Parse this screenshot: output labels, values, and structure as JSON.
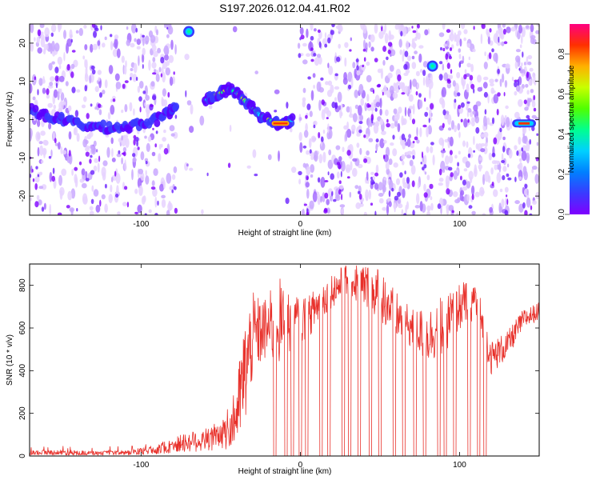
{
  "title": "S197.2026.012.04.41.R02",
  "colors": {
    "axis": "#000000",
    "snr_line": "#e8302a",
    "wash": "#efe2ff",
    "colormap": [
      "#8000ff",
      "#3a3aff",
      "#0080ff",
      "#00d0ff",
      "#00ff90",
      "#50ff00",
      "#c8ff00",
      "#ffb000",
      "#ff3000",
      "#ff0080"
    ]
  },
  "chart_data": [
    {
      "type": "heatmap",
      "name": "spectrogram",
      "xlabel": "Height of straight line (km)",
      "ylabel": "Frequency (Hz)",
      "xlim": [
        -170,
        150
      ],
      "ylim": [
        -25,
        25
      ],
      "xticks": [
        -100,
        0,
        100
      ],
      "yticks": [
        -20,
        -10,
        0,
        10,
        20
      ],
      "colorbar": {
        "label": "Normalized spectral amplitude",
        "range": [
          0,
          0.95
        ],
        "ticks": [
          "0.0",
          "0.2",
          "0.4",
          "0.6",
          "0.8"
        ]
      },
      "features": [
        {
          "name": "low-altitude band",
          "x": [
            -170,
            -160,
            -150,
            -140,
            -130,
            -120,
            -110,
            -100,
            -90,
            -82,
            -78
          ],
          "y": [
            3,
            1,
            0,
            -1,
            -2,
            -2,
            -2,
            -1,
            0,
            2,
            4
          ]
        },
        {
          "name": "arc",
          "x": [
            -60,
            -55,
            -50,
            -45,
            -40,
            -35,
            -30,
            -25,
            -20,
            -15,
            -10,
            -5
          ],
          "y": [
            5,
            6,
            7,
            8,
            7,
            5,
            3,
            1,
            0,
            -1,
            -1,
            0
          ]
        },
        {
          "name": "spot 1",
          "x": [
            -70
          ],
          "y": [
            23
          ]
        },
        {
          "name": "spot 2",
          "x": [
            83
          ],
          "y": [
            14
          ]
        },
        {
          "name": "right segment",
          "x": [
            133,
            148
          ],
          "y": [
            -1,
            -1
          ]
        }
      ]
    },
    {
      "type": "line",
      "name": "snr",
      "xlabel": "Height of straight line (km)",
      "ylabel": "SNR (10 * v/v)",
      "xlim": [
        -170,
        150
      ],
      "ylim": [
        0,
        900
      ],
      "xticks": [
        -100,
        0,
        100
      ],
      "yticks": [
        0,
        200,
        400,
        600,
        800
      ],
      "x": [
        -170,
        -150,
        -130,
        -110,
        -100,
        -90,
        -80,
        -70,
        -60,
        -50,
        -45,
        -40,
        -35,
        -30,
        -25,
        -20,
        -15,
        -10,
        -5,
        0,
        5,
        10,
        20,
        30,
        40,
        50,
        60,
        70,
        80,
        90,
        100,
        110,
        120,
        130,
        140,
        150
      ],
      "y_mean": [
        15,
        15,
        12,
        14,
        20,
        30,
        45,
        60,
        70,
        80,
        110,
        200,
        380,
        560,
        580,
        600,
        640,
        620,
        620,
        640,
        650,
        700,
        780,
        820,
        800,
        760,
        660,
        600,
        560,
        620,
        700,
        740,
        460,
        520,
        640,
        680
      ],
      "y_spread": [
        15,
        15,
        12,
        15,
        20,
        25,
        35,
        40,
        45,
        50,
        80,
        200,
        320,
        260,
        200,
        180,
        300,
        200,
        180,
        150,
        120,
        120,
        100,
        110,
        130,
        160,
        140,
        120,
        160,
        180,
        140,
        120,
        100,
        80,
        60,
        50
      ],
      "dropouts": [
        -16,
        -9,
        -5,
        0,
        4,
        13,
        18,
        27,
        31,
        37,
        44,
        50,
        59,
        65,
        72,
        78,
        87,
        91,
        97,
        106,
        112,
        116
      ]
    }
  ]
}
